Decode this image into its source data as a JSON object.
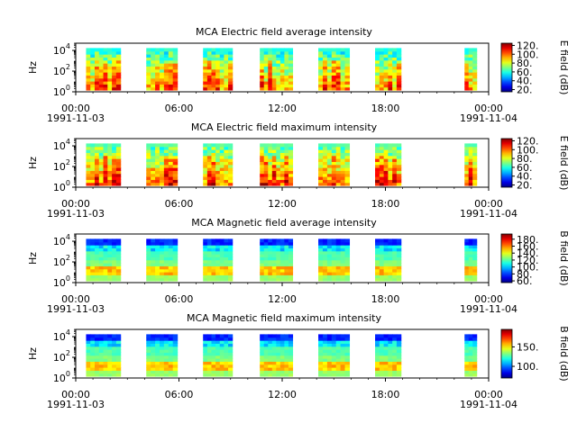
{
  "chart_data": [
    {
      "type": "heatmap",
      "title": "MCA  Electric field average intensity",
      "ylabel": "Hz",
      "yscale": "log",
      "y_ticks": [
        1,
        100,
        10000
      ],
      "y_tick_labels": [
        "10",
        "10",
        "10"
      ],
      "y_tick_exps": [
        "0",
        "2",
        "4"
      ],
      "x_tick_labels": [
        "00:00",
        "06:00",
        "12:00",
        "18:00",
        "00:00"
      ],
      "x_date_labels": [
        "1991-11-03",
        "1991-11-04"
      ],
      "xlim": [
        "1991-11-03T00:00",
        "1991-11-04T00:00"
      ],
      "colorbar_label": "E field (dB)",
      "colorbar_range": [
        15,
        125
      ],
      "colorbar_ticks": [
        20,
        40,
        60,
        80,
        100,
        120
      ],
      "colorbar_tick_labels": [
        "20.",
        "40.",
        "60.",
        "80.",
        "100.",
        "120."
      ],
      "colormap": "jet",
      "data_spans_hours": [
        [
          0.6,
          2.6
        ],
        [
          4.1,
          5.9
        ],
        [
          7.4,
          9.1
        ],
        [
          10.7,
          12.6
        ],
        [
          14.1,
          15.9
        ],
        [
          17.4,
          18.9
        ],
        [
          22.6,
          23.3
        ]
      ],
      "freq_range_hz": [
        1.5,
        17000
      ]
    },
    {
      "type": "heatmap",
      "title": "MCA  Electric field maximum intensity",
      "ylabel": "Hz",
      "yscale": "log",
      "y_ticks": [
        1,
        100,
        10000
      ],
      "y_tick_labels": [
        "10",
        "10",
        "10"
      ],
      "y_tick_exps": [
        "0",
        "2",
        "4"
      ],
      "x_tick_labels": [
        "00:00",
        "06:00",
        "12:00",
        "18:00",
        "00:00"
      ],
      "x_date_labels": [
        "1991-11-03",
        "1991-11-04"
      ],
      "xlim": [
        "1991-11-03T00:00",
        "1991-11-04T00:00"
      ],
      "colorbar_label": "E field (dB)",
      "colorbar_range": [
        15,
        125
      ],
      "colorbar_ticks": [
        20,
        40,
        60,
        80,
        100,
        120
      ],
      "colorbar_tick_labels": [
        "20.",
        "40.",
        "60.",
        "80.",
        "100.",
        "120."
      ],
      "colormap": "jet",
      "data_spans_hours": [
        [
          0.6,
          2.6
        ],
        [
          4.1,
          5.9
        ],
        [
          7.4,
          9.1
        ],
        [
          10.7,
          12.6
        ],
        [
          14.1,
          15.9
        ],
        [
          17.4,
          18.9
        ],
        [
          22.6,
          23.3
        ]
      ],
      "freq_range_hz": [
        1.5,
        17000
      ]
    },
    {
      "type": "heatmap",
      "title": "MCA  Magnetic field average intensity",
      "ylabel": "Hz",
      "yscale": "log",
      "y_ticks": [
        1,
        100,
        10000
      ],
      "y_tick_labels": [
        "10",
        "10",
        "10"
      ],
      "y_tick_exps": [
        "0",
        "2",
        "4"
      ],
      "x_tick_labels": [
        "00:00",
        "06:00",
        "12:00",
        "18:00",
        "00:00"
      ],
      "x_date_labels": [
        "1991-11-03",
        "1991-11-04"
      ],
      "xlim": [
        "1991-11-03T00:00",
        "1991-11-04T00:00"
      ],
      "colorbar_label": "B field (dB)",
      "colorbar_range": [
        55,
        195
      ],
      "colorbar_ticks": [
        60,
        80,
        100,
        120,
        140,
        160,
        180
      ],
      "colorbar_tick_labels": [
        "60.",
        "80.",
        "100.",
        "120.",
        "140.",
        "160.",
        "180."
      ],
      "colormap": "jet",
      "data_spans_hours": [
        [
          0.6,
          2.6
        ],
        [
          4.1,
          5.9
        ],
        [
          7.4,
          9.1
        ],
        [
          10.7,
          12.6
        ],
        [
          14.1,
          15.9
        ],
        [
          17.4,
          18.9
        ],
        [
          22.6,
          23.3
        ]
      ],
      "freq_range_hz": [
        1.5,
        17000
      ]
    },
    {
      "type": "heatmap",
      "title": "MCA  Magnetic field maximum intensity",
      "ylabel": "Hz",
      "yscale": "log",
      "y_ticks": [
        1,
        100,
        10000
      ],
      "y_tick_labels": [
        "10",
        "10",
        "10"
      ],
      "y_tick_exps": [
        "0",
        "2",
        "4"
      ],
      "x_tick_labels": [
        "00:00",
        "06:00",
        "12:00",
        "18:00",
        "00:00"
      ],
      "x_date_labels": [
        "1991-11-03",
        "1991-11-04"
      ],
      "xlim": [
        "1991-11-03T00:00",
        "1991-11-04T00:00"
      ],
      "colorbar_label": "B field (dB)",
      "colorbar_range": [
        70,
        195
      ],
      "colorbar_ticks": [
        100,
        150
      ],
      "colorbar_tick_labels": [
        "100.",
        "150."
      ],
      "colormap": "jet",
      "data_spans_hours": [
        [
          0.6,
          2.6
        ],
        [
          4.1,
          5.9
        ],
        [
          7.4,
          9.1
        ],
        [
          10.7,
          12.6
        ],
        [
          14.1,
          15.9
        ],
        [
          17.4,
          18.9
        ],
        [
          22.6,
          23.3
        ]
      ],
      "freq_range_hz": [
        1.5,
        17000
      ]
    }
  ]
}
